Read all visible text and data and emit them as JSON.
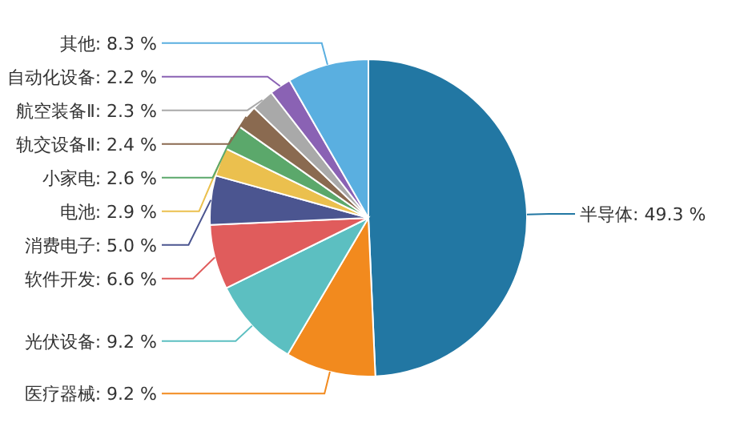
{
  "chart_data": {
    "type": "pie",
    "categories": [
      "半导体",
      "医疗器械",
      "光伏设备",
      "软件开发",
      "消费电子",
      "电池",
      "小家电",
      "轨交设备Ⅱ",
      "航空装备Ⅱ",
      "自动化设备",
      "其他"
    ],
    "values": [
      49.3,
      9.2,
      9.2,
      6.6,
      5.0,
      2.9,
      2.6,
      2.4,
      2.3,
      2.2,
      8.3
    ],
    "value_labels": [
      "49.3 %",
      "9.2 %",
      "9.2 %",
      "6.6 %",
      "5.0 %",
      "2.9 %",
      "2.6 %",
      "2.4 %",
      "2.3 %",
      "2.2 %",
      "8.3 %"
    ],
    "colors": [
      "#2277a3",
      "#f28a1e",
      "#5cbfc1",
      "#e05c5c",
      "#4b5590",
      "#ebc04e",
      "#5ba86b",
      "#8a6a50",
      "#a9a9a9",
      "#8a62b4",
      "#5aafe0"
    ]
  }
}
